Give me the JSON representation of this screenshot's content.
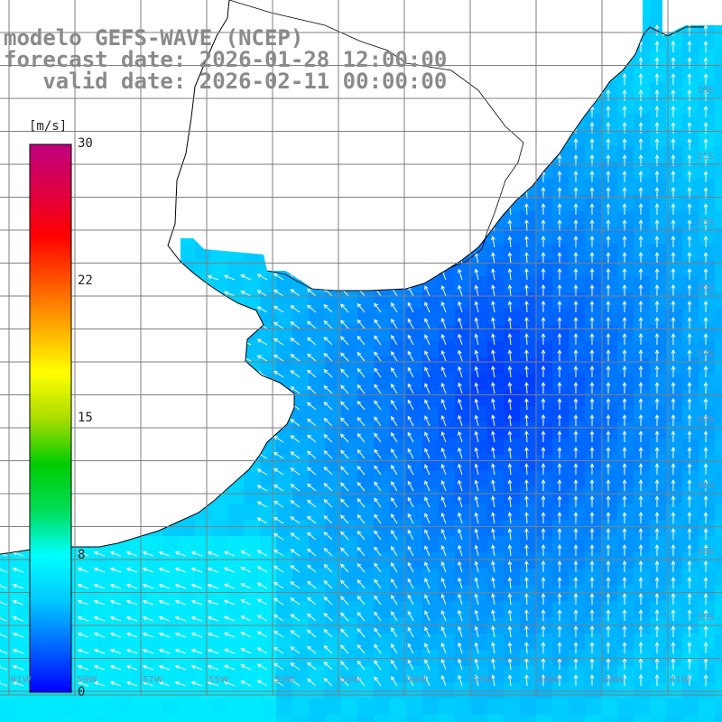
{
  "title": {
    "line1": "modelo GEFS-WAVE (NCEP)",
    "line2": "forecast date: 2026-01-28 12:00:00",
    "line3": "   valid date: 2026-02-11 00:00:00"
  },
  "colorbar": {
    "unit": "[m/s]",
    "min": 0,
    "max": 30,
    "ticks": [
      "30",
      "22",
      "15",
      "8",
      "0"
    ],
    "tick_values": [
      30,
      22,
      15,
      8,
      0
    ],
    "gradient": [
      "#0000ff",
      "#0066ff",
      "#00c8ff",
      "#00ffff",
      "#00dd55",
      "#00cc00",
      "#aadd00",
      "#ffff00",
      "#ffaa00",
      "#ff5500",
      "#ff0000",
      "#dd0044",
      "#c00080"
    ]
  },
  "grid": {
    "lat_labels": [
      "17S",
      "19S",
      "21S",
      "23S",
      "25S",
      "27S",
      "29S",
      "31S",
      "33S",
      "35S"
    ],
    "lon_labels": [
      "61W",
      "59W",
      "57W",
      "55W",
      "53W",
      "51W",
      "49W",
      "47W",
      "45W",
      "43W",
      "41W"
    ]
  },
  "colors": {
    "land": "#ffffff",
    "coast": "#000000",
    "grid": "#7f7f7f",
    "arrow": "#ffffff",
    "title": "#8a8a8a"
  }
}
